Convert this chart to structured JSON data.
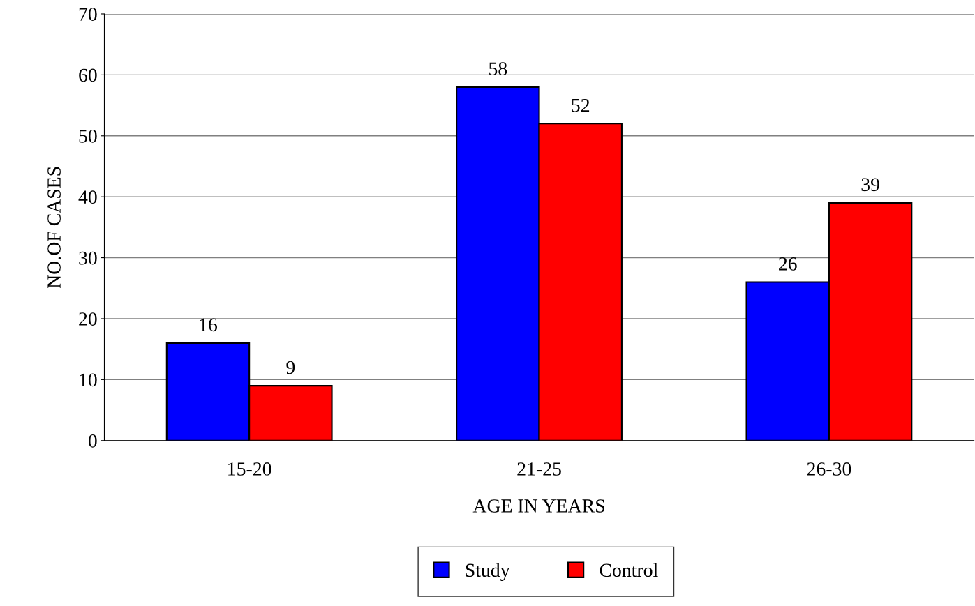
{
  "chart_data": {
    "type": "bar",
    "xlabel": "AGE IN YEARS",
    "ylabel": "NO.OF CASES",
    "categories": [
      "15-20",
      "21-25",
      "26-30"
    ],
    "series": [
      {
        "name": "Study",
        "color": "#0000ff",
        "values": [
          16,
          58,
          26
        ]
      },
      {
        "name": "Control",
        "color": "#ff0000",
        "values": [
          9,
          52,
          39
        ]
      }
    ],
    "ylim": [
      0,
      70
    ],
    "yticks": [
      0,
      10,
      20,
      30,
      40,
      50,
      60,
      70
    ],
    "grid": "y",
    "legend": "bottom",
    "data_labels": true
  }
}
